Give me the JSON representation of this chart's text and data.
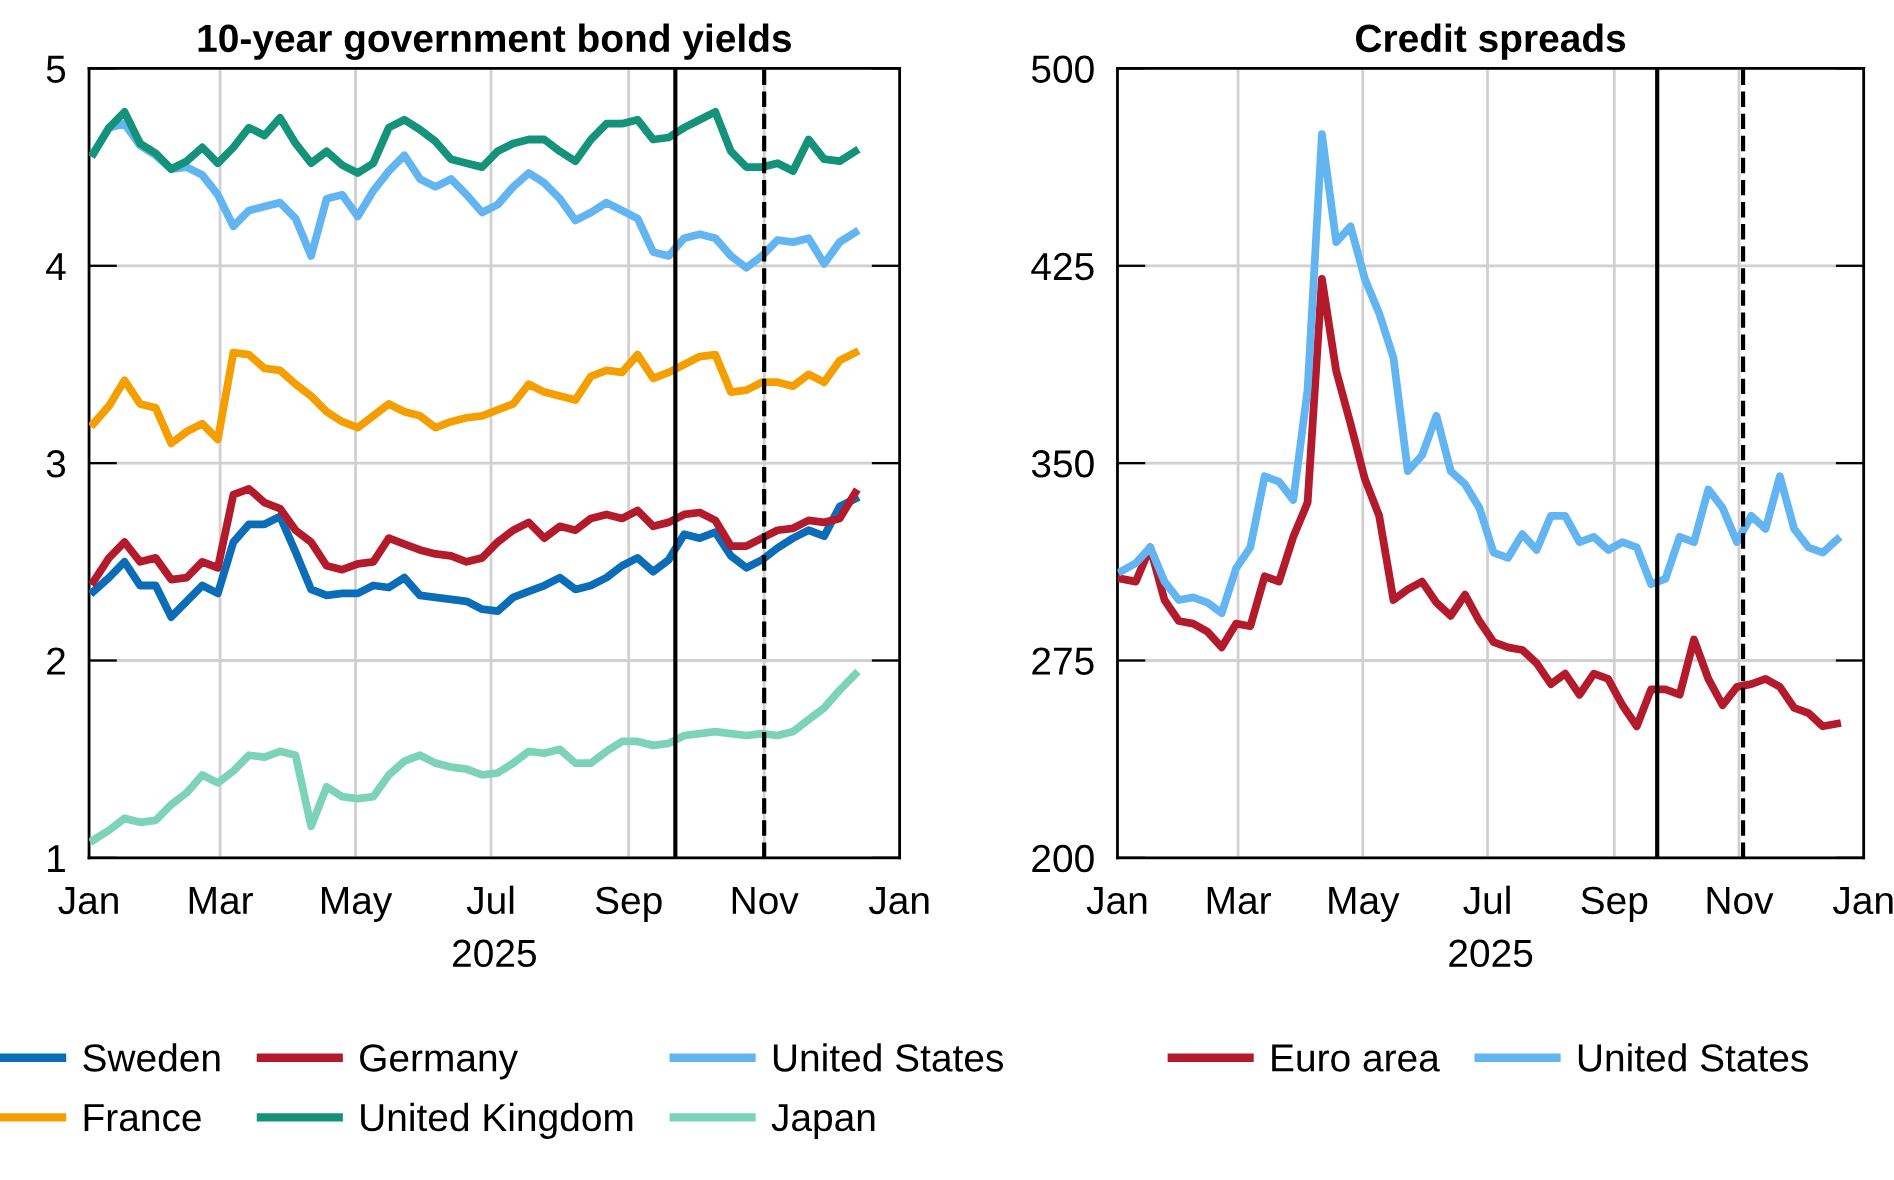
{
  "chart_data": [
    {
      "type": "line",
      "title": "10-year government bond yields",
      "xlabel": "2025",
      "x": [
        "2025-01-03",
        "2025-01-10",
        "2025-01-17",
        "2025-01-24",
        "2025-01-31",
        "2025-02-07",
        "2025-02-14",
        "2025-02-21",
        "2025-02-28",
        "2025-03-07",
        "2025-03-14",
        "2025-03-21",
        "2025-03-28",
        "2025-04-04",
        "2025-04-11",
        "2025-04-18",
        "2025-04-25",
        "2025-05-02",
        "2025-05-09",
        "2025-05-16",
        "2025-05-23",
        "2025-05-30",
        "2025-06-06",
        "2025-06-13",
        "2025-06-20",
        "2025-06-27",
        "2025-07-04",
        "2025-07-11",
        "2025-07-18",
        "2025-07-25",
        "2025-08-01",
        "2025-08-08",
        "2025-08-15",
        "2025-08-22",
        "2025-08-29",
        "2025-09-05",
        "2025-09-12",
        "2025-09-19",
        "2025-09-26",
        "2025-10-03",
        "2025-10-10",
        "2025-10-17",
        "2025-10-24",
        "2025-10-31",
        "2025-11-07",
        "2025-11-14",
        "2025-11-21",
        "2025-11-28",
        "2025-12-05",
        "2025-12-12"
      ],
      "series": [
        {
          "name": "Sweden",
          "color": "#0b6db7",
          "values": [
            2.35,
            2.42,
            2.5,
            2.38,
            2.38,
            2.22,
            2.3,
            2.38,
            2.34,
            2.6,
            2.69,
            2.69,
            2.73,
            2.55,
            2.36,
            2.33,
            2.34,
            2.34,
            2.38,
            2.37,
            2.42,
            2.33,
            2.32,
            2.31,
            2.3,
            2.26,
            2.25,
            2.32,
            2.35,
            2.38,
            2.42,
            2.36,
            2.38,
            2.42,
            2.48,
            2.52,
            2.45,
            2.51,
            2.64,
            2.62,
            2.65,
            2.53,
            2.47,
            2.51,
            2.57,
            2.62,
            2.66,
            2.63,
            2.78,
            2.82
          ]
        },
        {
          "name": "Germany",
          "color": "#b31b2c",
          "values": [
            2.4,
            2.52,
            2.6,
            2.5,
            2.52,
            2.41,
            2.42,
            2.5,
            2.47,
            2.84,
            2.87,
            2.8,
            2.77,
            2.66,
            2.6,
            2.48,
            2.46,
            2.49,
            2.5,
            2.62,
            2.59,
            2.56,
            2.54,
            2.53,
            2.5,
            2.52,
            2.6,
            2.66,
            2.7,
            2.62,
            2.68,
            2.66,
            2.72,
            2.74,
            2.72,
            2.76,
            2.68,
            2.7,
            2.74,
            2.75,
            2.71,
            2.58,
            2.58,
            2.62,
            2.66,
            2.67,
            2.71,
            2.7,
            2.72,
            2.85
          ]
        },
        {
          "name": "United States",
          "color": "#62b5f0",
          "values": [
            4.57,
            4.7,
            4.72,
            4.61,
            4.56,
            4.49,
            4.5,
            4.46,
            4.36,
            4.2,
            4.28,
            4.3,
            4.32,
            4.24,
            4.05,
            4.34,
            4.36,
            4.25,
            4.38,
            4.48,
            4.56,
            4.44,
            4.4,
            4.44,
            4.36,
            4.27,
            4.31,
            4.4,
            4.47,
            4.42,
            4.34,
            4.23,
            4.27,
            4.32,
            4.28,
            4.24,
            4.07,
            4.05,
            4.14,
            4.16,
            4.14,
            4.05,
            3.99,
            4.05,
            4.13,
            4.12,
            4.14,
            4.01,
            4.12,
            4.17
          ]
        },
        {
          "name": "France",
          "color": "#f59e00",
          "values": [
            3.2,
            3.29,
            3.42,
            3.3,
            3.28,
            3.1,
            3.16,
            3.2,
            3.12,
            3.56,
            3.55,
            3.48,
            3.47,
            3.4,
            3.34,
            3.26,
            3.21,
            3.18,
            3.24,
            3.3,
            3.26,
            3.24,
            3.18,
            3.21,
            3.23,
            3.24,
            3.27,
            3.3,
            3.4,
            3.36,
            3.34,
            3.32,
            3.44,
            3.47,
            3.46,
            3.55,
            3.43,
            3.46,
            3.5,
            3.54,
            3.55,
            3.36,
            3.37,
            3.41,
            3.41,
            3.39,
            3.45,
            3.41,
            3.52,
            3.56
          ]
        },
        {
          "name": "United Kingdom",
          "color": "#14927a",
          "values": [
            4.57,
            4.7,
            4.78,
            4.62,
            4.57,
            4.49,
            4.53,
            4.6,
            4.52,
            4.6,
            4.7,
            4.66,
            4.75,
            4.62,
            4.52,
            4.58,
            4.51,
            4.47,
            4.52,
            4.7,
            4.74,
            4.69,
            4.63,
            4.54,
            4.52,
            4.5,
            4.58,
            4.62,
            4.64,
            4.64,
            4.58,
            4.53,
            4.64,
            4.72,
            4.72,
            4.74,
            4.64,
            4.65,
            4.7,
            4.74,
            4.78,
            4.58,
            4.5,
            4.5,
            4.52,
            4.48,
            4.64,
            4.54,
            4.53,
            4.58
          ]
        },
        {
          "name": "Japan",
          "color": "#7dd3b8",
          "values": [
            1.09,
            1.14,
            1.2,
            1.18,
            1.19,
            1.27,
            1.33,
            1.42,
            1.38,
            1.44,
            1.52,
            1.51,
            1.54,
            1.52,
            1.16,
            1.36,
            1.31,
            1.3,
            1.31,
            1.42,
            1.49,
            1.52,
            1.48,
            1.46,
            1.45,
            1.42,
            1.43,
            1.48,
            1.54,
            1.53,
            1.55,
            1.48,
            1.48,
            1.54,
            1.59,
            1.59,
            1.57,
            1.58,
            1.62,
            1.63,
            1.64,
            1.63,
            1.62,
            1.63,
            1.62,
            1.64,
            1.7,
            1.76,
            1.85,
            1.93
          ]
        }
      ],
      "xlim": [
        "2025-01-01",
        "2026-01-01"
      ],
      "xticks": [
        {
          "value": "2025-01-01",
          "label": "Jan"
        },
        {
          "value": "2025-03-01",
          "label": "Mar"
        },
        {
          "value": "2025-05-01",
          "label": "May"
        },
        {
          "value": "2025-07-01",
          "label": "Jul"
        },
        {
          "value": "2025-09-01",
          "label": "Sep"
        },
        {
          "value": "2025-11-01",
          "label": "Nov"
        },
        {
          "value": "2026-01-01",
          "label": "Jan"
        }
      ],
      "ylim": [
        1,
        5
      ],
      "yticks": [
        1,
        2,
        3,
        4,
        5
      ],
      "ref_lines": [
        {
          "axis": "x",
          "value": "2025-09-22",
          "color": "#000000",
          "line_style": "solid"
        },
        {
          "axis": "x",
          "value": "2025-11-01",
          "color": "#000000",
          "line_style": "dashed"
        }
      ],
      "grid": true,
      "legend": "bottom",
      "line_style": "solid",
      "marker": "none"
    },
    {
      "type": "line",
      "title": "Credit spreads",
      "xlabel": "2025",
      "x": [
        "2025-01-03",
        "2025-01-10",
        "2025-01-17",
        "2025-01-24",
        "2025-01-31",
        "2025-02-07",
        "2025-02-14",
        "2025-02-21",
        "2025-02-28",
        "2025-03-07",
        "2025-03-14",
        "2025-03-21",
        "2025-03-28",
        "2025-04-04",
        "2025-04-11",
        "2025-04-18",
        "2025-04-25",
        "2025-05-02",
        "2025-05-09",
        "2025-05-16",
        "2025-05-23",
        "2025-05-30",
        "2025-06-06",
        "2025-06-13",
        "2025-06-20",
        "2025-06-27",
        "2025-07-04",
        "2025-07-11",
        "2025-07-18",
        "2025-07-25",
        "2025-08-01",
        "2025-08-08",
        "2025-08-15",
        "2025-08-22",
        "2025-08-29",
        "2025-09-05",
        "2025-09-12",
        "2025-09-19",
        "2025-09-26",
        "2025-10-03",
        "2025-10-10",
        "2025-10-17",
        "2025-10-24",
        "2025-10-31",
        "2025-11-07",
        "2025-11-14",
        "2025-11-21",
        "2025-11-28",
        "2025-12-05",
        "2025-12-12",
        "2025-12-19"
      ],
      "series": [
        {
          "name": "Euro area",
          "color": "#b31b2c",
          "values": [
            306,
            305,
            318,
            298,
            290,
            289,
            286,
            280,
            289,
            288,
            307,
            305,
            322,
            335,
            420,
            385,
            365,
            344,
            330,
            298,
            302,
            305,
            297,
            292,
            300,
            290,
            282,
            280,
            279,
            274,
            266,
            270,
            262,
            270,
            268,
            258,
            250,
            264,
            264,
            262,
            283,
            268,
            258,
            265,
            266,
            268,
            265,
            257,
            255,
            250,
            251
          ]
        },
        {
          "name": "United States",
          "color": "#62b5f0",
          "values": [
            309,
            312,
            318,
            305,
            298,
            299,
            297,
            293,
            310,
            318,
            345,
            343,
            336,
            378,
            475,
            434,
            440,
            420,
            407,
            390,
            347,
            353,
            368,
            347,
            342,
            333,
            316,
            314,
            323,
            317,
            330,
            330,
            320,
            322,
            317,
            320,
            318,
            304,
            306,
            322,
            320,
            340,
            333,
            320,
            330,
            325,
            345,
            325,
            318,
            316,
            321
          ]
        }
      ],
      "xlim": [
        "2025-01-01",
        "2026-01-01"
      ],
      "xticks": [
        {
          "value": "2025-01-01",
          "label": "Jan"
        },
        {
          "value": "2025-03-01",
          "label": "Mar"
        },
        {
          "value": "2025-05-01",
          "label": "May"
        },
        {
          "value": "2025-07-01",
          "label": "Jul"
        },
        {
          "value": "2025-09-01",
          "label": "Sep"
        },
        {
          "value": "2025-11-01",
          "label": "Nov"
        },
        {
          "value": "2026-01-01",
          "label": "Jan"
        }
      ],
      "ylim": [
        200,
        500
      ],
      "yticks": [
        200,
        275,
        350,
        425,
        500
      ],
      "ref_lines": [
        {
          "axis": "x",
          "value": "2025-09-22",
          "color": "#000000",
          "line_style": "solid"
        },
        {
          "axis": "x",
          "value": "2025-11-03",
          "color": "#000000",
          "line_style": "dashed"
        }
      ],
      "grid": true,
      "legend": "bottom",
      "line_style": "solid",
      "marker": "none"
    }
  ]
}
